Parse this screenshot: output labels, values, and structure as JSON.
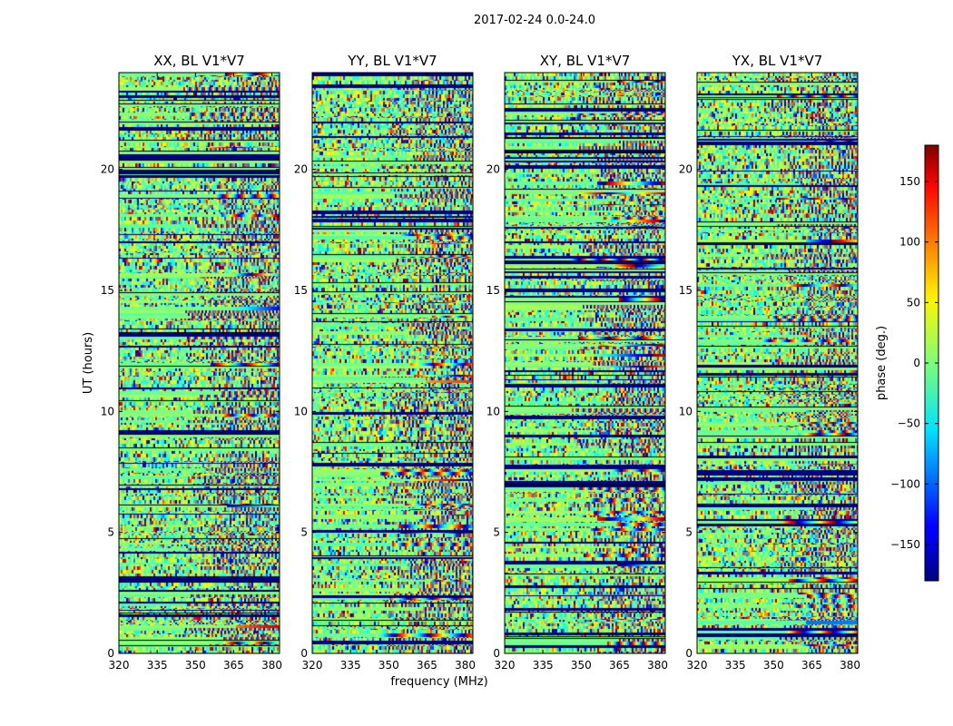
{
  "figure": {
    "suptitle": "2017-02-24 0.0-24.0",
    "xlabel": "frequency (MHz)",
    "ylabel": "UT (hours)"
  },
  "chart_data": [
    {
      "type": "heatmap",
      "title": "XX, BL V1*V7",
      "xlabel": "frequency (MHz)",
      "ylabel": "UT (hours)",
      "xlim": [
        320,
        383
      ],
      "ylim": [
        0,
        24
      ],
      "xticks": [
        320,
        335,
        350,
        365,
        380
      ],
      "yticks": [
        0,
        5,
        10,
        15,
        20
      ],
      "colormap": "jet",
      "clim": [
        -180,
        180
      ]
    },
    {
      "type": "heatmap",
      "title": "YY, BL V1*V7",
      "xlim": [
        320,
        383
      ],
      "ylim": [
        0,
        24
      ],
      "xticks": [
        320,
        335,
        350,
        365,
        380
      ],
      "yticks": [
        0,
        5,
        10,
        15,
        20
      ],
      "colormap": "jet",
      "clim": [
        -180,
        180
      ]
    },
    {
      "type": "heatmap",
      "title": "XY, BL V1*V7",
      "xlim": [
        320,
        383
      ],
      "ylim": [
        0,
        24
      ],
      "xticks": [
        320,
        335,
        350,
        365,
        380
      ],
      "yticks": [
        0,
        5,
        10,
        15,
        20
      ],
      "colormap": "jet",
      "clim": [
        -180,
        180
      ]
    },
    {
      "type": "heatmap",
      "title": "YX, BL V1*V7",
      "xlim": [
        320,
        383
      ],
      "ylim": [
        0,
        24
      ],
      "xticks": [
        320,
        335,
        350,
        365,
        380
      ],
      "yticks": [
        0,
        5,
        10,
        15,
        20
      ],
      "colormap": "jet",
      "clim": [
        -180,
        180
      ]
    }
  ],
  "colorbar": {
    "label": "phase (deg.)",
    "range": [
      -180,
      180
    ],
    "ticks": [
      -150,
      -100,
      -50,
      0,
      50,
      100,
      150
    ],
    "colormap": "jet"
  }
}
